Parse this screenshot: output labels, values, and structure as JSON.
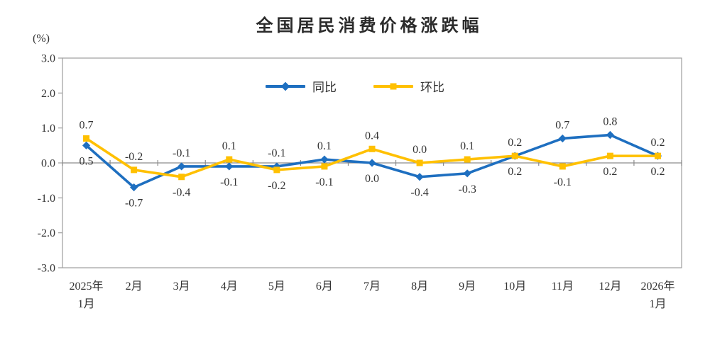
{
  "chart_data": {
    "type": "line",
    "title": "全国居民消费价格涨跌幅",
    "unit_label": "(%)",
    "categories": [
      [
        "2025年",
        "1月"
      ],
      [
        "2月"
      ],
      [
        "3月"
      ],
      [
        "4月"
      ],
      [
        "5月"
      ],
      [
        "6月"
      ],
      [
        "7月"
      ],
      [
        "8月"
      ],
      [
        "9月"
      ],
      [
        "10月"
      ],
      [
        "11月"
      ],
      [
        "12月"
      ],
      [
        "2026年",
        "1月"
      ]
    ],
    "y_ticks": [
      "3.0",
      "2.0",
      "1.0",
      "0.0",
      "-1.0",
      "-2.0",
      "-3.0"
    ],
    "ylim": [
      -3.0,
      3.0
    ],
    "grid": "zero-line-only",
    "plot_border": true,
    "legend_position": "top-center-inside",
    "axis_color": "#9e9e9e",
    "zero_line_color": "#8c8c8c",
    "label_color": "#333333",
    "series": [
      {
        "name": "同比",
        "color": "#1e6fc0",
        "marker": "diamond",
        "values": [
          0.5,
          -0.7,
          -0.1,
          -0.1,
          -0.1,
          0.1,
          0.0,
          -0.4,
          -0.3,
          0.2,
          0.7,
          0.8,
          0.2
        ],
        "label_side": [
          "below",
          "below",
          "above",
          "below",
          "above",
          "above",
          "below",
          "below",
          "below",
          "below",
          "above",
          "above",
          "above"
        ]
      },
      {
        "name": "环比",
        "color": "#ffc000",
        "marker": "square",
        "values": [
          0.7,
          -0.2,
          -0.4,
          0.1,
          -0.2,
          -0.1,
          0.4,
          0.0,
          0.1,
          0.2,
          -0.1,
          0.2,
          0.2
        ],
        "label_side": [
          "above",
          "above",
          "below",
          "above",
          "below",
          "below",
          "above",
          "above",
          "above",
          "above",
          "below",
          "below",
          "below"
        ]
      }
    ]
  }
}
